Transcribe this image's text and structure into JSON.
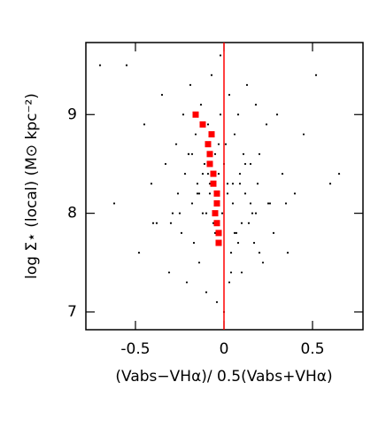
{
  "chart_data": {
    "type": "scatter",
    "x_label": "(Vabs−VHα)/ 0.5(Vabs+VHα)",
    "y_label": "log Σ⋆ (local) (M⊙ kpc⁻²)",
    "xlim": [
      -0.78,
      0.785
    ],
    "ylim": [
      6.82,
      9.73
    ],
    "xticks": [
      -0.5,
      0,
      0.5
    ],
    "yticks": [
      7,
      8,
      9
    ],
    "vline": {
      "x": 0,
      "color": "#ff0000"
    },
    "series": [
      {
        "color": "#000000",
        "marker": "dot",
        "x": [
          -0.62,
          -0.55,
          -0.48,
          -0.45,
          -0.41,
          -0.38,
          -0.35,
          -0.33,
          -0.31,
          -0.29,
          -0.27,
          -0.26,
          -0.24,
          -0.23,
          -0.22,
          -0.21,
          -0.2,
          -0.19,
          -0.18,
          -0.17,
          -0.16,
          -0.15,
          -0.14,
          -0.13,
          -0.12,
          -0.11,
          -0.1,
          -0.09,
          -0.08,
          -0.07,
          -0.06,
          -0.05,
          -0.04,
          -0.03,
          -0.02,
          -0.01,
          0.0,
          0.01,
          0.02,
          0.03,
          0.04,
          0.05,
          0.06,
          0.07,
          0.08,
          0.09,
          0.1,
          0.11,
          0.12,
          0.13,
          0.14,
          0.15,
          0.16,
          0.17,
          0.18,
          0.19,
          0.2,
          0.22,
          0.24,
          0.26,
          0.28,
          0.3,
          0.33,
          0.36,
          0.4,
          0.45,
          0.52,
          0.6,
          0.65,
          -0.7,
          -0.15,
          -0.1,
          -0.05,
          0.0,
          0.05,
          0.1,
          -0.2,
          0.15,
          -0.12,
          0.08,
          -0.03,
          0.02,
          -0.25,
          0.2,
          -0.08,
          0.12,
          -0.3,
          0.25,
          -0.18,
          0.04,
          -0.06,
          0.06,
          -0.14,
          0.18,
          -0.02,
          0.03,
          -0.09,
          0.09,
          -0.4,
          0.35
        ],
        "values": [
          8.1,
          9.5,
          7.6,
          8.9,
          8.3,
          7.9,
          9.2,
          8.5,
          7.4,
          8.0,
          8.7,
          8.2,
          7.8,
          9.0,
          8.4,
          7.3,
          8.6,
          9.3,
          8.1,
          7.7,
          8.8,
          8.3,
          7.5,
          9.1,
          8.0,
          8.5,
          7.2,
          8.9,
          8.2,
          9.4,
          7.9,
          8.6,
          7.1,
          8.4,
          9.6,
          8.0,
          7.0,
          8.7,
          8.3,
          9.2,
          7.6,
          8.1,
          8.8,
          7.8,
          9.0,
          8.4,
          7.4,
          8.6,
          8.2,
          9.3,
          7.9,
          8.5,
          8.0,
          7.7,
          9.1,
          8.3,
          8.6,
          7.5,
          8.9,
          8.1,
          7.8,
          9.0,
          8.4,
          7.6,
          8.2,
          8.8,
          9.4,
          8.3,
          8.4,
          9.5,
          8.2,
          8.0,
          7.8,
          8.5,
          8.3,
          7.9,
          8.6,
          8.1,
          8.4,
          7.7,
          8.7,
          8.2,
          8.0,
          7.6,
          8.3,
          8.5,
          7.9,
          8.1,
          8.6,
          7.4,
          8.8,
          7.8,
          8.2,
          8.0,
          9.0,
          7.3,
          8.4,
          8.3,
          7.9,
          8.1
        ]
      },
      {
        "color": "#ff0000",
        "marker": "square",
        "x": [
          -0.16,
          -0.12,
          -0.07,
          -0.09,
          -0.08,
          -0.08,
          -0.06,
          -0.06,
          -0.04,
          -0.04,
          -0.05,
          -0.04,
          -0.03,
          -0.03
        ],
        "values": [
          9.0,
          8.9,
          8.8,
          8.7,
          8.6,
          8.5,
          8.4,
          8.3,
          8.2,
          8.1,
          8.0,
          7.9,
          7.8,
          7.7
        ]
      }
    ]
  }
}
